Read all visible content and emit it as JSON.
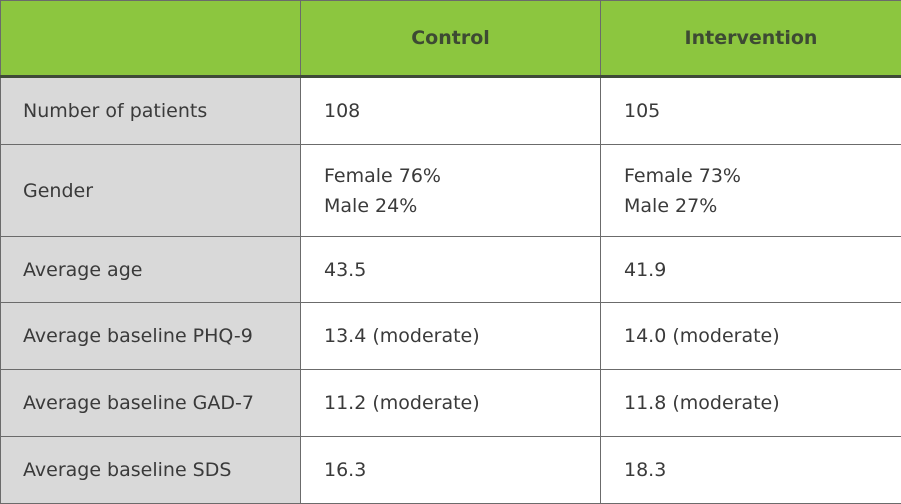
{
  "table": {
    "headers": [
      "",
      "Control",
      "Intervention"
    ],
    "rows": [
      {
        "label": "Number of patients",
        "control": [
          "108"
        ],
        "intervention": [
          "105"
        ]
      },
      {
        "label": "Gender",
        "control": [
          "Female 76%",
          "Male 24%"
        ],
        "intervention": [
          "Female 73%",
          "Male 27%"
        ]
      },
      {
        "label": "Average age",
        "control": [
          "43.5"
        ],
        "intervention": [
          "41.9"
        ]
      },
      {
        "label": "Average baseline PHQ-9",
        "control": [
          "13.4 (moderate)"
        ],
        "intervention": [
          "14.0 (moderate)"
        ]
      },
      {
        "label": "Average baseline GAD-7",
        "control": [
          "11.2 (moderate)"
        ],
        "intervention": [
          "11.8 (moderate)"
        ]
      },
      {
        "label": "Average baseline SDS",
        "control": [
          "16.3"
        ],
        "intervention": [
          "18.3"
        ]
      }
    ]
  },
  "colors": {
    "header_bg": "#8cc63f",
    "label_bg": "#d9d9d9",
    "text": "#3a3a3a"
  }
}
